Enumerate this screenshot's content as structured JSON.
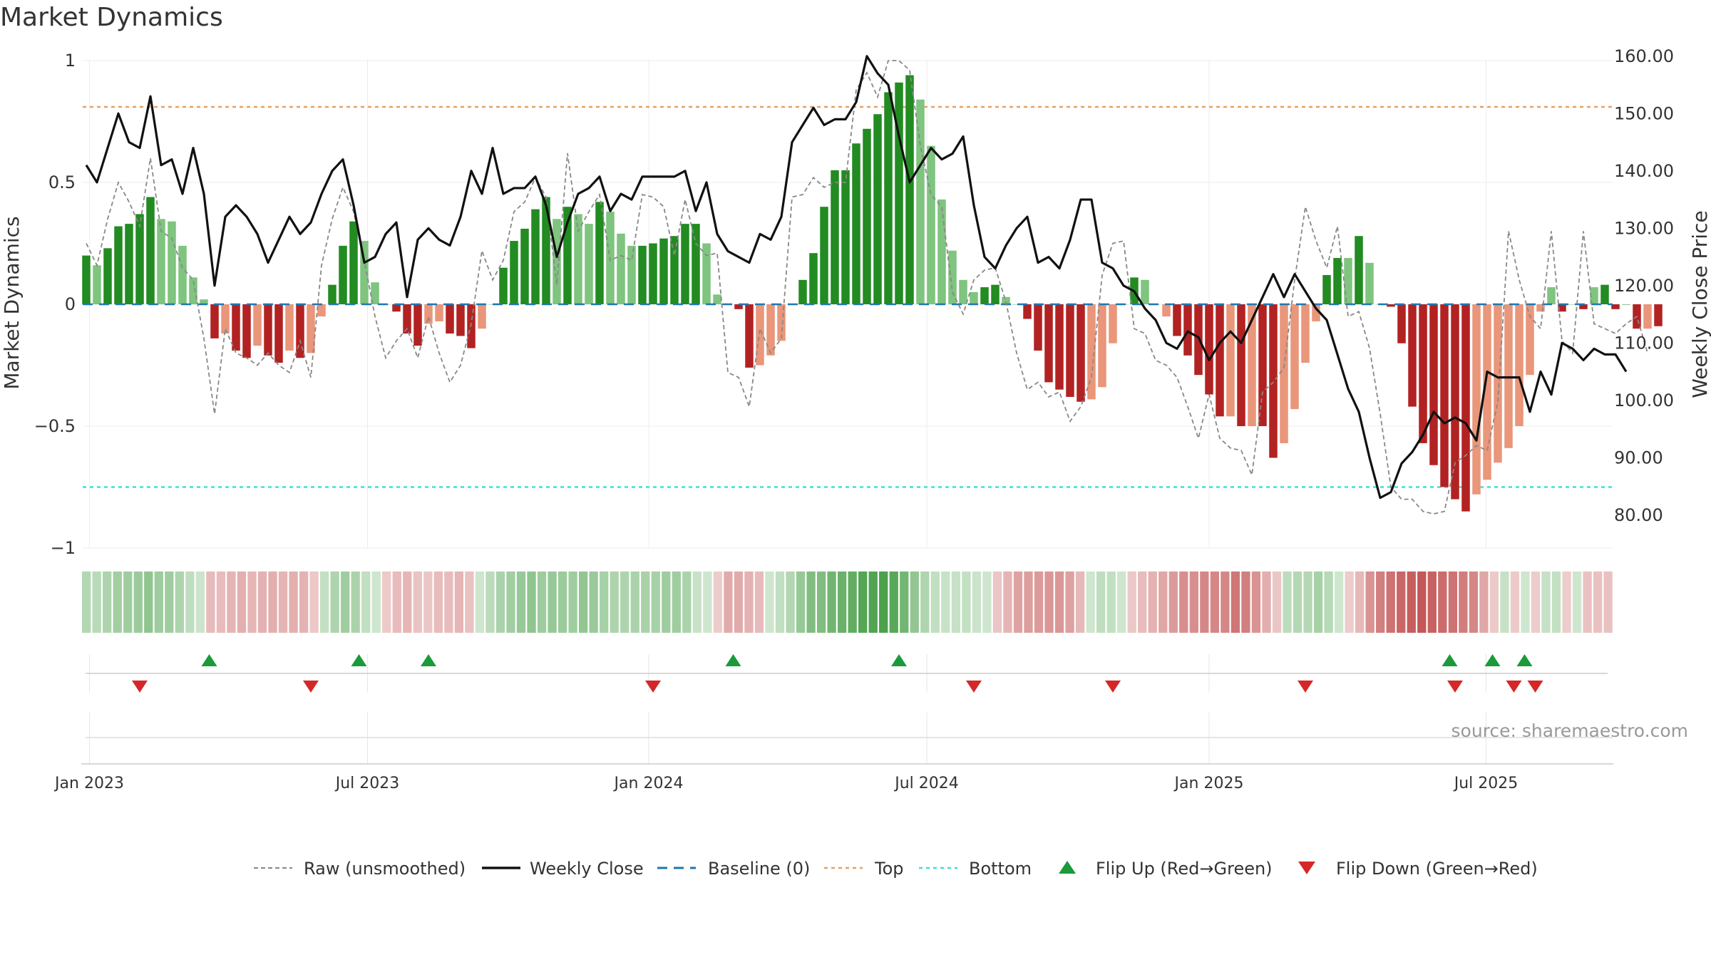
{
  "chart_data": {
    "type": "bar",
    "title": "Market Dynamics",
    "ylabel_left": "Market Dynamics",
    "ylabel_right": "Weekly Close Price",
    "source": "source: sharemaestro.com",
    "y_left_range": [
      -1,
      1
    ],
    "y_right_range": [
      78.0,
      163.0
    ],
    "y_left_ticks": [
      "1",
      "0.5",
      "0",
      "−0.5",
      "−1"
    ],
    "y_left_tick_values": [
      1,
      0.5,
      0,
      -0.5,
      -1
    ],
    "y_right_ticks": [
      "160.00",
      "150.00",
      "140.00",
      "130.00",
      "120.00",
      "110.00",
      "100.00",
      "90.00",
      "80.00"
    ],
    "y_right_tick_values": [
      160,
      150,
      140,
      130,
      120,
      110,
      100,
      90,
      80
    ],
    "x_ticks": [
      "Jan 2023",
      "Jul 2023",
      "Jan 2024",
      "Jul 2024",
      "Jan 2025",
      "Jul 2025"
    ],
    "x_tick_weeks": [
      0.3,
      26.3,
      52.6,
      78.6,
      105.0,
      130.9
    ],
    "top_line": 0.81,
    "bottom_line": -0.75,
    "grid": true,
    "legend_position": "bottom",
    "legend": [
      {
        "label": "Raw (unsmoothed)",
        "key": "raw"
      },
      {
        "label": "Weekly Close",
        "key": "close"
      },
      {
        "label": "Baseline (0)",
        "key": "baseline"
      },
      {
        "label": "Top",
        "key": "top"
      },
      {
        "label": "Bottom",
        "key": "bottom"
      },
      {
        "label": "Flip Up (Red→Green)",
        "key": "flipup"
      },
      {
        "label": "Flip Down (Green→Red)",
        "key": "flipdown"
      }
    ],
    "colors": {
      "green_strong": "#228b22",
      "green_weak": "#7fc47f",
      "red_strong": "#b22222",
      "red_weak": "#e9967a",
      "close": "#111111",
      "raw": "#888888",
      "baseline": "#1f77b4",
      "top": "#e8a060",
      "bottom": "#40e0d0",
      "flip_up": "#1a9a3a",
      "flip_down": "#d62728"
    },
    "bars": [
      0.2,
      0.16,
      0.23,
      0.32,
      0.33,
      0.37,
      0.44,
      0.35,
      0.34,
      0.24,
      0.11,
      0.02,
      -0.14,
      -0.12,
      -0.19,
      -0.22,
      -0.17,
      -0.21,
      -0.24,
      -0.19,
      -0.22,
      -0.2,
      -0.05,
      0.08,
      0.24,
      0.34,
      0.26,
      0.09,
      0.0,
      -0.03,
      -0.12,
      -0.17,
      -0.08,
      -0.07,
      -0.12,
      -0.13,
      -0.18,
      -0.1,
      0.0,
      0.15,
      0.26,
      0.31,
      0.39,
      0.44,
      0.35,
      0.4,
      0.37,
      0.33,
      0.42,
      0.38,
      0.29,
      0.24,
      0.24,
      0.25,
      0.27,
      0.28,
      0.33,
      0.33,
      0.25,
      0.04,
      0.0,
      -0.02,
      -0.26,
      -0.25,
      -0.21,
      -0.15,
      0.0,
      0.1,
      0.21,
      0.4,
      0.55,
      0.55,
      0.66,
      0.72,
      0.78,
      0.87,
      0.91,
      0.94,
      0.84,
      0.65,
      0.43,
      0.22,
      0.1,
      0.05,
      0.07,
      0.08,
      0.03,
      0.0,
      -0.06,
      -0.19,
      -0.32,
      -0.35,
      -0.38,
      -0.4,
      -0.39,
      -0.34,
      -0.16,
      0.0,
      0.11,
      0.1,
      0.0,
      -0.05,
      -0.13,
      -0.21,
      -0.29,
      -0.37,
      -0.46,
      -0.46,
      -0.5,
      -0.5,
      -0.5,
      -0.63,
      -0.57,
      -0.43,
      -0.24,
      -0.07,
      0.12,
      0.19,
      0.19,
      0.28,
      0.17,
      0.0,
      -0.01,
      -0.16,
      -0.42,
      -0.57,
      -0.66,
      -0.75,
      -0.8,
      -0.85,
      -0.78,
      -0.72,
      -0.65,
      -0.59,
      -0.5,
      -0.29,
      -0.03,
      0.07,
      -0.03,
      0.0,
      -0.02,
      0.07,
      0.08,
      -0.02,
      0.0,
      -0.1,
      -0.1,
      -0.09
    ],
    "bar_strength": [
      1,
      0,
      1,
      1,
      1,
      1,
      1,
      0,
      0,
      0,
      0,
      0,
      1,
      0,
      1,
      1,
      0,
      1,
      1,
      0,
      1,
      0,
      0,
      1,
      1,
      1,
      0,
      0,
      0,
      1,
      1,
      1,
      0,
      0,
      1,
      1,
      1,
      0,
      0,
      1,
      1,
      1,
      1,
      1,
      0,
      1,
      0,
      0,
      1,
      0,
      0,
      0,
      1,
      1,
      1,
      1,
      1,
      1,
      0,
      0,
      0,
      1,
      1,
      0,
      0,
      0,
      0,
      1,
      1,
      1,
      1,
      1,
      1,
      1,
      1,
      1,
      1,
      1,
      0,
      0,
      0,
      0,
      0,
      0,
      1,
      1,
      0,
      0,
      1,
      1,
      1,
      1,
      1,
      1,
      0,
      0,
      0,
      0,
      1,
      0,
      0,
      0,
      1,
      1,
      1,
      1,
      1,
      0,
      1,
      0,
      1,
      1,
      0,
      0,
      0,
      0,
      1,
      1,
      0,
      1,
      0,
      0,
      1,
      1,
      1,
      1,
      1,
      1,
      1,
      1,
      0,
      0,
      0,
      0,
      0,
      0,
      0,
      0,
      1,
      0,
      1,
      0,
      1,
      1,
      1,
      1,
      0,
      1,
      1,
      1
    ],
    "close": [
      141,
      138,
      144,
      150,
      145,
      144,
      153,
      141,
      142,
      136,
      144,
      136,
      120,
      132,
      134,
      132,
      129,
      124,
      128,
      132,
      129,
      131,
      136,
      140,
      142,
      134,
      124,
      125,
      129,
      131,
      118,
      128,
      130,
      128,
      127,
      132,
      140,
      136,
      144,
      136,
      137,
      137,
      139,
      134,
      125,
      131,
      136,
      137,
      139,
      133,
      136,
      135,
      139,
      139,
      139,
      139,
      140,
      133,
      138,
      129,
      126,
      125,
      124,
      129,
      128,
      132,
      145,
      148,
      151,
      148,
      149,
      149,
      152,
      160,
      157,
      155,
      146,
      138,
      141,
      144,
      142,
      143,
      146,
      134,
      125,
      123,
      127,
      130,
      132,
      124,
      125,
      123,
      128,
      135,
      135,
      124,
      123,
      120,
      119,
      116,
      114,
      110,
      109,
      112,
      111,
      107,
      110,
      112,
      110,
      114,
      118,
      122,
      118,
      122,
      119,
      116,
      114,
      108,
      102,
      98,
      90,
      83,
      84,
      89,
      91,
      94,
      98,
      96,
      97,
      96,
      93,
      105,
      104,
      104,
      104,
      98,
      105,
      101,
      110,
      109,
      107,
      109,
      108,
      108,
      105
    ],
    "raw": [
      0.25,
      0.16,
      0.35,
      0.5,
      0.42,
      0.32,
      0.6,
      0.3,
      0.27,
      0.15,
      0.1,
      -0.14,
      -0.45,
      -0.1,
      -0.2,
      -0.22,
      -0.25,
      -0.2,
      -0.25,
      -0.28,
      -0.15,
      -0.3,
      0.16,
      0.35,
      0.48,
      0.38,
      0.18,
      -0.05,
      -0.22,
      -0.15,
      -0.1,
      -0.22,
      -0.05,
      -0.2,
      -0.32,
      -0.25,
      -0.08,
      0.22,
      0.1,
      0.18,
      0.38,
      0.42,
      0.52,
      0.44,
      0.08,
      0.62,
      0.3,
      0.38,
      0.45,
      0.18,
      0.2,
      0.18,
      0.45,
      0.44,
      0.4,
      0.2,
      0.43,
      0.25,
      0.2,
      0.21,
      -0.28,
      -0.3,
      -0.42,
      -0.1,
      -0.2,
      -0.14,
      0.44,
      0.45,
      0.52,
      0.48,
      0.5,
      0.5,
      0.88,
      0.95,
      0.85,
      1.0,
      1.0,
      0.96,
      0.65,
      0.45,
      0.4,
      0.05,
      -0.04,
      0.1,
      0.14,
      0.15,
      0.01,
      -0.2,
      -0.35,
      -0.32,
      -0.38,
      -0.36,
      -0.48,
      -0.42,
      -0.3,
      0.12,
      0.25,
      0.26,
      -0.1,
      -0.12,
      -0.23,
      -0.25,
      -0.3,
      -0.42,
      -0.55,
      -0.37,
      -0.55,
      -0.59,
      -0.6,
      -0.7,
      -0.36,
      -0.32,
      -0.26,
      0.1,
      0.4,
      0.26,
      0.15,
      0.32,
      -0.05,
      -0.03,
      -0.18,
      -0.45,
      -0.75,
      -0.8,
      -0.8,
      -0.85,
      -0.86,
      -0.85,
      -0.65,
      -0.62,
      -0.58,
      -0.6,
      -0.4,
      0.3,
      0.1,
      -0.05,
      -0.1,
      0.3,
      -0.15,
      -0.2,
      0.3,
      -0.08,
      -0.1,
      -0.12,
      -0.08,
      -0.05,
      -0.2
    ],
    "flip_up_weeks": [
      11.5,
      25.5,
      32.0,
      60.5,
      76.0,
      127.5,
      131.5,
      134.5
    ],
    "flip_down_weeks": [
      5.0,
      21.0,
      53.0,
      83.0,
      96.0,
      114.0,
      128.0,
      133.5,
      135.5
    ]
  }
}
